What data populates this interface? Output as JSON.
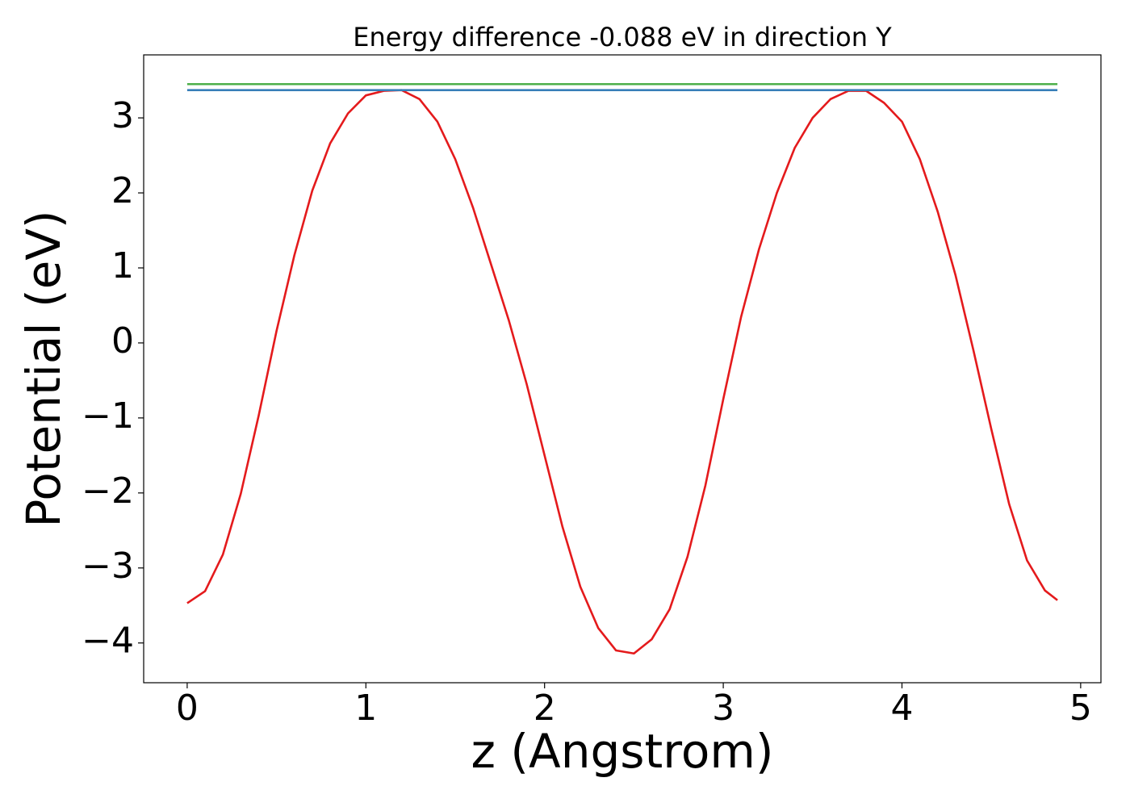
{
  "chart_data": {
    "type": "line",
    "title": "Energy difference -0.088 eV in direction Y",
    "x_label": "z (Angstrom)",
    "y_label": "Potential (eV)",
    "xlim": [
      -0.2435,
      5.1135
    ],
    "ylim": [
      -4.53,
      3.84
    ],
    "xticks": [
      0,
      1,
      2,
      3,
      4,
      5
    ],
    "yticks": [
      {
        "value": -4,
        "label": "−4"
      },
      {
        "value": -3,
        "label": "−3"
      },
      {
        "value": -2,
        "label": "−2"
      },
      {
        "value": -1,
        "label": "−1"
      },
      0,
      1,
      2,
      3
    ],
    "grid": false,
    "series": [
      {
        "color": "#e41a1c",
        "x": [
          0,
          0.1,
          0.2,
          0.3,
          0.4,
          0.5,
          0.6,
          0.7,
          0.8,
          0.9,
          1.0,
          1.1,
          1.2,
          1.3,
          1.4,
          1.5,
          1.6,
          1.7,
          1.8,
          1.9,
          2.0,
          2.1,
          2.2,
          2.3,
          2.4,
          2.5,
          2.6,
          2.7,
          2.8,
          2.9,
          3.0,
          3.1,
          3.2,
          3.3,
          3.4,
          3.5,
          3.6,
          3.7,
          3.8,
          3.9,
          4.0,
          4.1,
          4.2,
          4.3,
          4.4,
          4.5,
          4.6,
          4.7,
          4.8,
          4.87
        ],
        "values": [
          -3.47,
          -3.31,
          -2.82,
          -2.01,
          -0.97,
          0.16,
          1.17,
          2.03,
          2.66,
          3.06,
          3.3,
          3.36,
          3.37,
          3.25,
          2.95,
          2.45,
          1.8,
          1.05,
          0.3,
          -0.55,
          -1.5,
          -2.45,
          -3.25,
          -3.8,
          -4.1,
          -4.14,
          -3.95,
          -3.55,
          -2.85,
          -1.9,
          -0.75,
          0.35,
          1.25,
          2.0,
          2.6,
          3.0,
          3.25,
          3.36,
          3.36,
          3.2,
          2.95,
          2.45,
          1.75,
          0.9,
          -0.1,
          -1.15,
          -2.15,
          -2.9,
          -3.3,
          -3.43
        ]
      },
      {
        "color": "#377eb8",
        "x": [
          0,
          4.87
        ],
        "values": [
          3.37,
          3.37
        ]
      },
      {
        "color": "#4daf4a",
        "x": [
          0,
          4.87
        ],
        "values": [
          3.45,
          3.45
        ]
      }
    ]
  }
}
